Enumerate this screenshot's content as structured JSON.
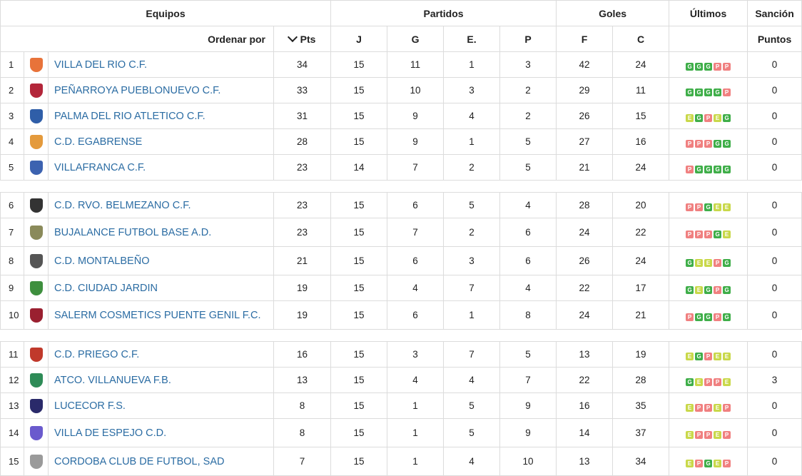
{
  "headers": {
    "equipos": "Equipos",
    "partidos": "Partidos",
    "goles": "Goles",
    "ultimos": "Últimos",
    "sancion": "Sanción",
    "ordenar": "Ordenar por",
    "pts": "Pts",
    "j": "J",
    "g": "G",
    "e": "E.",
    "p": "P",
    "f": "F",
    "c": "C",
    "puntos": "Puntos"
  },
  "groups": [
    {
      "teams": [
        {
          "pos": "1",
          "name": "VILLA DEL RIO C.F.",
          "pts": "34",
          "j": "15",
          "g": "11",
          "e": "1",
          "p": "3",
          "f": "42",
          "c": "24",
          "form": [
            "G",
            "G",
            "G",
            "P",
            "P"
          ],
          "sancion": "0",
          "crest_icon": "sun-crest-icon",
          "crest_color": "#e8733a"
        },
        {
          "pos": "2",
          "name": "PEÑARROYA PUEBLONUEVO C.F.",
          "pts": "33",
          "j": "15",
          "g": "10",
          "e": "3",
          "p": "2",
          "f": "29",
          "c": "11",
          "form": [
            "G",
            "G",
            "G",
            "G",
            "P"
          ],
          "sancion": "0",
          "crest_icon": "shield-crest-icon",
          "crest_color": "#b3263a"
        },
        {
          "pos": "3",
          "name": "PALMA DEL RIO ATLETICO C.F.",
          "pts": "31",
          "j": "15",
          "g": "9",
          "e": "4",
          "p": "2",
          "f": "26",
          "c": "15",
          "form": [
            "E",
            "G",
            "P",
            "E",
            "G"
          ],
          "sancion": "0",
          "crest_icon": "shield-crest-icon",
          "crest_color": "#2f5ea8"
        },
        {
          "pos": "4",
          "name": "C.D. EGABRENSE",
          "pts": "28",
          "j": "15",
          "g": "9",
          "e": "1",
          "p": "5",
          "f": "27",
          "c": "16",
          "form": [
            "P",
            "P",
            "P",
            "G",
            "G"
          ],
          "sancion": "0",
          "crest_icon": "cup-crest-icon",
          "crest_color": "#e49a3c"
        },
        {
          "pos": "5",
          "name": "VILLAFRANCA C.F.",
          "pts": "23",
          "j": "14",
          "g": "7",
          "e": "2",
          "p": "5",
          "f": "21",
          "c": "24",
          "form": [
            "P",
            "G",
            "G",
            "G",
            "G"
          ],
          "sancion": "0",
          "crest_icon": "shield-crest-icon",
          "crest_color": "#3c62b0"
        }
      ]
    },
    {
      "teams": [
        {
          "pos": "6",
          "name": "C.D. RVO. BELMEZANO C.F.",
          "pts": "23",
          "j": "15",
          "g": "6",
          "e": "5",
          "p": "4",
          "f": "28",
          "c": "20",
          "form": [
            "P",
            "P",
            "G",
            "E",
            "E"
          ],
          "sancion": "0",
          "crest_icon": "figure-crest-icon",
          "crest_color": "#333333"
        },
        {
          "pos": "7",
          "name": "BUJALANCE FUTBOL BASE A.D.",
          "pts": "23",
          "j": "15",
          "g": "7",
          "e": "2",
          "p": "6",
          "f": "24",
          "c": "22",
          "form": [
            "P",
            "P",
            "P",
            "G",
            "E"
          ],
          "sancion": "0",
          "crest_icon": "shield-crest-icon",
          "crest_color": "#8a8a5a"
        },
        {
          "pos": "8",
          "name": "C.D. MONTALBEÑO",
          "pts": "21",
          "j": "15",
          "g": "6",
          "e": "3",
          "p": "6",
          "f": "26",
          "c": "24",
          "form": [
            "G",
            "E",
            "E",
            "P",
            "G"
          ],
          "sancion": "0",
          "crest_icon": "shield-crest-icon",
          "crest_color": "#555555"
        },
        {
          "pos": "9",
          "name": "C.D. CIUDAD JARDIN",
          "pts": "19",
          "j": "15",
          "g": "4",
          "e": "7",
          "p": "4",
          "f": "22",
          "c": "17",
          "form": [
            "G",
            "E",
            "G",
            "P",
            "G"
          ],
          "sancion": "0",
          "crest_icon": "shield-crest-icon",
          "crest_color": "#3e8f3e"
        },
        {
          "pos": "10",
          "name": "SALERM COSMETICS PUENTE GENIL F.C.",
          "pts": "19",
          "j": "15",
          "g": "6",
          "e": "1",
          "p": "8",
          "f": "24",
          "c": "21",
          "form": [
            "P",
            "G",
            "G",
            "P",
            "G"
          ],
          "sancion": "0",
          "crest_icon": "shield-crest-icon",
          "crest_color": "#9a2030"
        }
      ]
    },
    {
      "teams": [
        {
          "pos": "11",
          "name": "C.D. PRIEGO C.F.",
          "pts": "16",
          "j": "15",
          "g": "3",
          "e": "7",
          "p": "5",
          "f": "13",
          "c": "19",
          "form": [
            "E",
            "G",
            "P",
            "E",
            "E"
          ],
          "sancion": "0",
          "crest_icon": "shield-crest-icon",
          "crest_color": "#c0392b"
        },
        {
          "pos": "12",
          "name": "ATCO. VILLANUEVA F.B.",
          "pts": "13",
          "j": "15",
          "g": "4",
          "e": "4",
          "p": "7",
          "f": "22",
          "c": "28",
          "form": [
            "G",
            "E",
            "P",
            "P",
            "E"
          ],
          "sancion": "3",
          "crest_icon": "wreath-crest-icon",
          "crest_color": "#2e8b57"
        },
        {
          "pos": "13",
          "name": "LUCECOR F.S.",
          "pts": "8",
          "j": "15",
          "g": "1",
          "e": "5",
          "p": "9",
          "f": "16",
          "c": "35",
          "form": [
            "E",
            "P",
            "P",
            "E",
            "P"
          ],
          "sancion": "0",
          "crest_icon": "round-crest-icon",
          "crest_color": "#2a2a6a"
        },
        {
          "pos": "14",
          "name": "VILLA DE ESPEJO C.D.",
          "pts": "8",
          "j": "15",
          "g": "1",
          "e": "5",
          "p": "9",
          "f": "14",
          "c": "37",
          "form": [
            "E",
            "P",
            "P",
            "E",
            "P"
          ],
          "sancion": "0",
          "crest_icon": "shield-crest-icon",
          "crest_color": "#6a5acd"
        },
        {
          "pos": "15",
          "name": "CORDOBA CLUB DE FUTBOL, SAD",
          "pts": "7",
          "j": "15",
          "g": "1",
          "e": "4",
          "p": "10",
          "f": "13",
          "c": "34",
          "form": [
            "E",
            "P",
            "G",
            "E",
            "P"
          ],
          "sancion": "0",
          "crest_icon": "shield-crest-icon",
          "crest_color": "#9a9a9a"
        }
      ]
    }
  ]
}
